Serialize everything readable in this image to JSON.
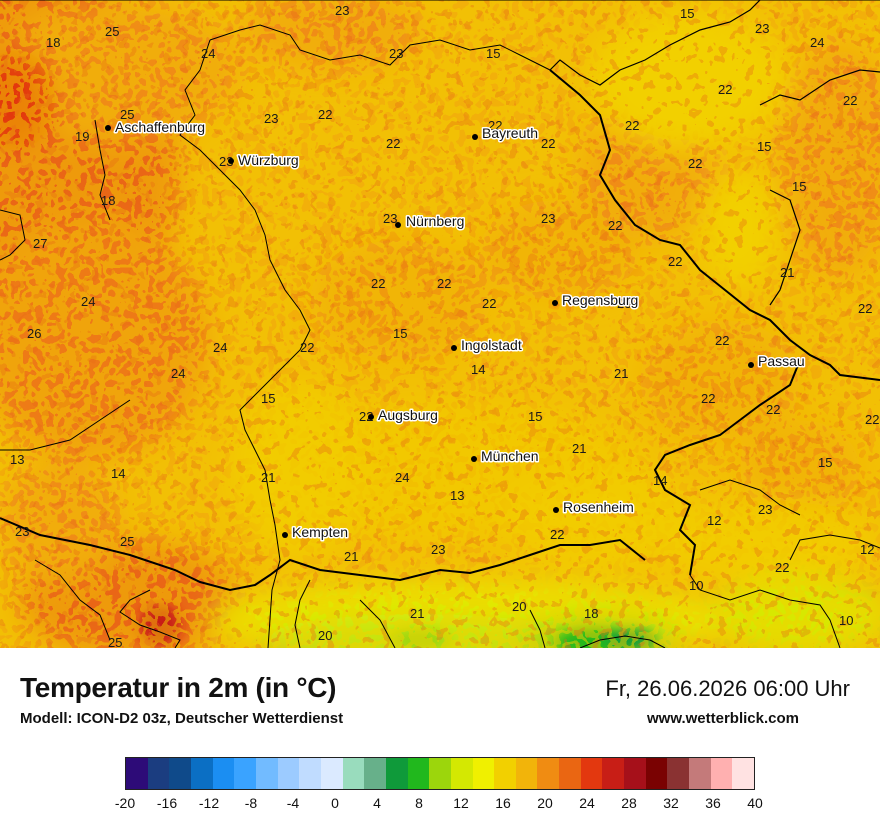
{
  "header": {
    "title": "Temperatur in 2m (in °C)",
    "subtitle": "Modell: ICON-D2 03z, Deutscher Wetterdienst",
    "datetime": "Fr, 26.06.2026 06:00 Uhr",
    "website": "www.wetterblick.com"
  },
  "cities": [
    {
      "name": "Aschaffenburg"
    },
    {
      "name": "Würzburg"
    },
    {
      "name": "Bayreuth"
    },
    {
      "name": "Nürnberg"
    },
    {
      "name": "Regensburg"
    },
    {
      "name": "Ingolstadt"
    },
    {
      "name": "Passau"
    },
    {
      "name": "Augsburg"
    },
    {
      "name": "München"
    },
    {
      "name": "Rosenheim"
    },
    {
      "name": "Kempten"
    }
  ],
  "temperature_labels": [
    "23",
    "15",
    "23",
    "25",
    "18",
    "24",
    "23",
    "15",
    "24",
    "22",
    "25",
    "23",
    "22",
    "19",
    "22",
    "22",
    "22",
    "22",
    "22",
    "22",
    "23",
    "15",
    "15",
    "18",
    "23",
    "23",
    "22",
    "27",
    "22",
    "21",
    "22",
    "22",
    "22",
    "23",
    "24",
    "22",
    "26",
    "24",
    "15",
    "22",
    "22",
    "21",
    "24",
    "14",
    "22",
    "15",
    "22",
    "22",
    "22",
    "15",
    "21",
    "13",
    "14",
    "21",
    "24",
    "15",
    "14",
    "13",
    "12",
    "23",
    "23",
    "25",
    "22",
    "21",
    "23",
    "12",
    "22",
    "10",
    "21",
    "20",
    "18",
    "20",
    "10",
    "25"
  ],
  "legend": {
    "colors": [
      "#2d0b78",
      "#1b3d80",
      "#0f4a8a",
      "#0b6fc4",
      "#1b8ef2",
      "#3aa3ff",
      "#72bbff",
      "#9ccbff",
      "#c0dcff",
      "#dbeaff",
      "#99dcbd",
      "#67b08a",
      "#0f9a3a",
      "#21b81d",
      "#9cd60c",
      "#d4e802",
      "#f0f000",
      "#f2d000",
      "#f2b40a",
      "#f08c12",
      "#ea6612",
      "#e3380f",
      "#c81e16",
      "#a6101a",
      "#7a0202",
      "#8a3232",
      "#c47a7a",
      "#ffb0b0",
      "#ffe2e2"
    ],
    "ticks": [
      "-20",
      "-16",
      "-12",
      "-8",
      "-4",
      "0",
      "4",
      "8",
      "12",
      "16",
      "20",
      "24",
      "28",
      "32",
      "36",
      "40"
    ]
  }
}
